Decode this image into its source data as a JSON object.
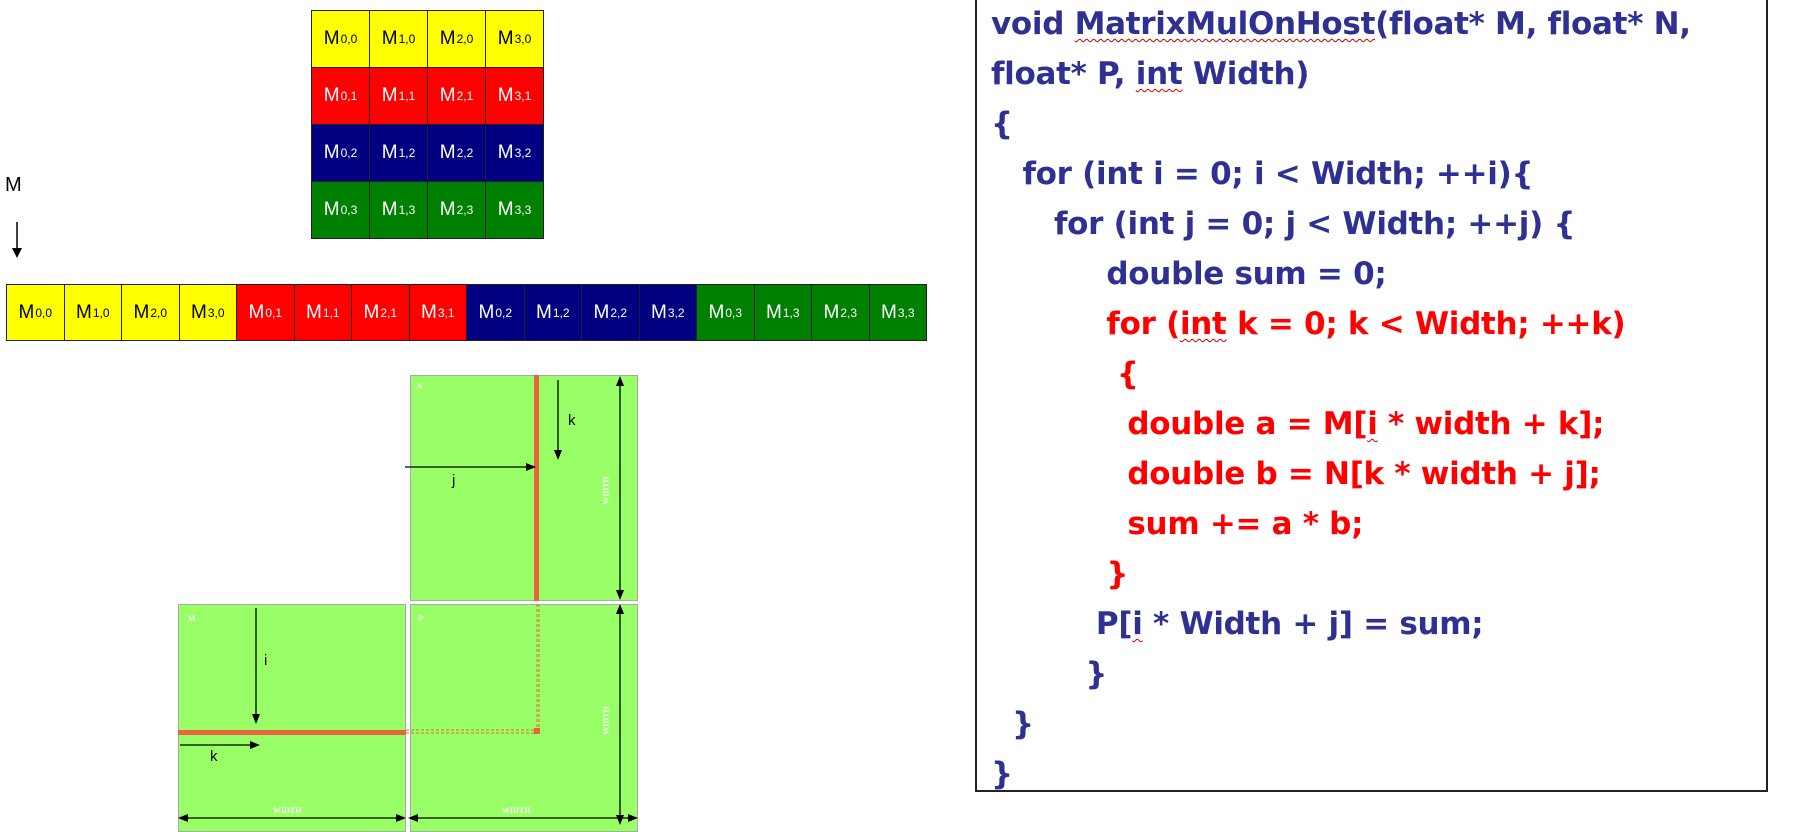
{
  "matrix_grid": {
    "label_prefix": "M",
    "colors": {
      "row0": "#ffff00",
      "row1": "#ff0000",
      "row2": "#000080",
      "row3": "#008000"
    },
    "text_colors": {
      "row0": "#000000",
      "row1": "#ffffff",
      "row2": "#ffffff",
      "row3": "#ffffff"
    },
    "rows": [
      [
        {
          "a": "0,0",
          "c": "row0"
        },
        {
          "a": "1,0",
          "c": "row0"
        },
        {
          "a": "2,0",
          "c": "row0"
        },
        {
          "a": "3,0",
          "c": "row0"
        }
      ],
      [
        {
          "a": "0,1",
          "c": "row1"
        },
        {
          "a": "1,1",
          "c": "row1"
        },
        {
          "a": "2,1",
          "c": "row1"
        },
        {
          "a": "3,1",
          "c": "row1"
        }
      ],
      [
        {
          "a": "0,2",
          "c": "row2"
        },
        {
          "a": "1,2",
          "c": "row2"
        },
        {
          "a": "2,2",
          "c": "row2"
        },
        {
          "a": "3,2",
          "c": "row2"
        }
      ],
      [
        {
          "a": "0,3",
          "c": "row3"
        },
        {
          "a": "1,3",
          "c": "row3"
        },
        {
          "a": "2,3",
          "c": "row3"
        },
        {
          "a": "3,3",
          "c": "row3"
        }
      ]
    ]
  },
  "linear_label": "M",
  "linear_array": [
    {
      "a": "0,0",
      "c": "row0"
    },
    {
      "a": "1,0",
      "c": "row0"
    },
    {
      "a": "2,0",
      "c": "row0"
    },
    {
      "a": "3,0",
      "c": "row0"
    },
    {
      "a": "0,1",
      "c": "row1"
    },
    {
      "a": "1,1",
      "c": "row1"
    },
    {
      "a": "2,1",
      "c": "row1"
    },
    {
      "a": "3,1",
      "c": "row1"
    },
    {
      "a": "0,2",
      "c": "row2"
    },
    {
      "a": "1,2",
      "c": "row2"
    },
    {
      "a": "2,2",
      "c": "row2"
    },
    {
      "a": "3,2",
      "c": "row2"
    },
    {
      "a": "0,3",
      "c": "row3"
    },
    {
      "a": "1,3",
      "c": "row3"
    },
    {
      "a": "2,3",
      "c": "row3"
    },
    {
      "a": "3,3",
      "c": "row3"
    }
  ],
  "mult_diagram": {
    "panel_color": "#99ff66",
    "stripe_color": "#e8643c",
    "panel_n_label": "N",
    "panel_m_label": "M",
    "panel_p_label": "P",
    "width_label": "WIDTH",
    "label_k_top": "k",
    "label_j": "j",
    "label_i": "i",
    "label_k_bottom": "k"
  },
  "code": {
    "lines": [
      {
        "segments": [
          {
            "t": "void ",
            "c": "blue"
          },
          {
            "t": "MatrixMulOnHost",
            "c": "blue",
            "sq": true
          },
          {
            "t": "(float* M, float* N,",
            "c": "blue"
          }
        ]
      },
      {
        "segments": [
          {
            "t": "float* P, ",
            "c": "blue"
          },
          {
            "t": "int",
            "c": "blue",
            "sq": true
          },
          {
            "t": " Width)",
            "c": "blue"
          }
        ]
      },
      {
        "segments": [
          {
            "t": "{",
            "c": "blue"
          }
        ]
      },
      {
        "segments": [
          {
            "t": "   for (int i = 0; i < Width; ++i){",
            "c": "blue"
          }
        ]
      },
      {
        "segments": [
          {
            "t": "      for (int j = 0; j < Width; ++j) {",
            "c": "blue"
          }
        ]
      },
      {
        "segments": [
          {
            "t": "           double sum = 0;",
            "c": "blue"
          }
        ]
      },
      {
        "segments": [
          {
            "t": "           for (",
            "c": "red"
          },
          {
            "t": "int",
            "c": "red",
            "sq": true
          },
          {
            "t": " k = 0; k < Width; ++k)",
            "c": "red"
          }
        ]
      },
      {
        "segments": [
          {
            "t": "            {",
            "c": "red"
          }
        ]
      },
      {
        "segments": [
          {
            "t": "             double a = M[",
            "c": "red"
          },
          {
            "t": "i",
            "c": "red",
            "sq": true
          },
          {
            "t": " * width + k];",
            "c": "red"
          }
        ]
      },
      {
        "segments": [
          {
            "t": "             double b = N[k * width + j];",
            "c": "red"
          }
        ]
      },
      {
        "segments": [
          {
            "t": "             sum += a * b;",
            "c": "red"
          }
        ]
      },
      {
        "segments": [
          {
            "t": "           }",
            "c": "red"
          }
        ]
      },
      {
        "segments": [
          {
            "t": "          P[",
            "c": "blue"
          },
          {
            "t": "i",
            "c": "blue",
            "sq": true
          },
          {
            "t": " * Width + j] = sum;",
            "c": "blue"
          }
        ]
      },
      {
        "segments": [
          {
            "t": "         }",
            "c": "blue"
          }
        ]
      },
      {
        "segments": [
          {
            "t": "  }",
            "c": "blue"
          }
        ]
      },
      {
        "segments": [
          {
            "t": "}",
            "c": "blue"
          }
        ]
      }
    ]
  }
}
